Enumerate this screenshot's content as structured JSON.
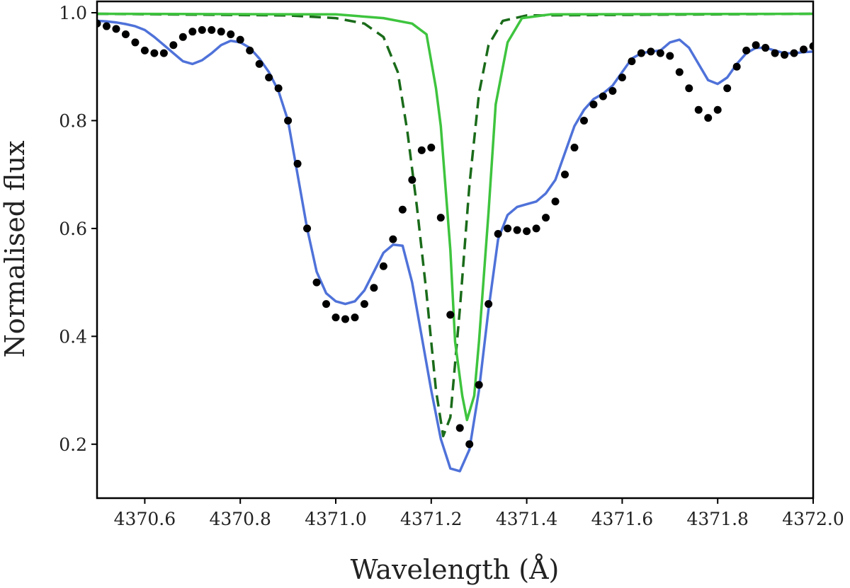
{
  "chart_data": {
    "type": "line",
    "x_label": "Wavelength (Å)",
    "y_label": "Normalised flux",
    "xlim": [
      4370.5,
      4372.0
    ],
    "ylim": [
      0.1,
      1.021
    ],
    "xticks": [
      4370.6,
      4370.8,
      {
        "value": 4371.0,
        "label": "4371.0"
      },
      4371.2,
      4371.4,
      4371.6,
      4371.8,
      {
        "value": 4372.0,
        "label": "4372.0"
      }
    ],
    "yticks": [
      0.2,
      0.4,
      0.6,
      0.8,
      {
        "value": 1.0,
        "label": "1.0"
      }
    ],
    "x": [
      4370.5,
      4370.52,
      4370.54,
      4370.56,
      4370.58,
      4370.6,
      4370.62,
      4370.64,
      4370.66,
      4370.68,
      4370.7,
      4370.72,
      4370.74,
      4370.76,
      4370.78,
      4370.8,
      4370.82,
      4370.84,
      4370.86,
      4370.88,
      4370.9,
      4370.92,
      4370.94,
      4370.96,
      4370.98,
      4371.0,
      4371.02,
      4371.04,
      4371.06,
      4371.08,
      4371.1,
      4371.12,
      4371.14,
      4371.16,
      4371.18,
      4371.2,
      4371.22,
      4371.24,
      4371.26,
      4371.28,
      4371.3,
      4371.32,
      4371.34,
      4371.36,
      4371.38,
      4371.4,
      4371.42,
      4371.44,
      4371.46,
      4371.48,
      4371.5,
      4371.52,
      4371.54,
      4371.56,
      4371.58,
      4371.6,
      4371.62,
      4371.64,
      4371.66,
      4371.68,
      4371.7,
      4371.72,
      4371.74,
      4371.76,
      4371.78,
      4371.8,
      4371.82,
      4371.84,
      4371.86,
      4371.88,
      4371.9,
      4371.92,
      4371.94,
      4371.96,
      4371.98,
      4372.0
    ],
    "series": [
      {
        "style": "solid",
        "color": "#4f72d9",
        "values": [
          0.985,
          0.984,
          0.982,
          0.979,
          0.975,
          0.968,
          0.955,
          0.94,
          0.925,
          0.91,
          0.905,
          0.912,
          0.925,
          0.94,
          0.948,
          0.945,
          0.935,
          0.915,
          0.89,
          0.855,
          0.8,
          0.7,
          0.6,
          0.52,
          0.48,
          0.465,
          0.46,
          0.465,
          0.485,
          0.52,
          0.555,
          0.57,
          0.568,
          0.5,
          0.4,
          0.3,
          0.21,
          0.155,
          0.15,
          0.19,
          0.3,
          0.45,
          0.58,
          0.625,
          0.64,
          0.645,
          0.65,
          0.665,
          0.69,
          0.74,
          0.79,
          0.82,
          0.84,
          0.85,
          0.865,
          0.89,
          0.915,
          0.925,
          0.928,
          0.93,
          0.945,
          0.95,
          0.935,
          0.905,
          0.875,
          0.868,
          0.88,
          0.905,
          0.925,
          0.935,
          0.935,
          0.93,
          0.925,
          0.925,
          0.927,
          0.928
        ]
      },
      {
        "style": "dashed",
        "color": "#1a6b1a",
        "x": [
          4370.5,
          4370.9,
          4371.0,
          4371.06,
          4371.1,
          4371.13,
          4371.15,
          4371.17,
          4371.19,
          4371.21,
          4371.225,
          4371.24,
          4371.26,
          4371.28,
          4371.3,
          4371.32,
          4371.35,
          4371.4,
          4372.0
        ],
        "values": [
          0.998,
          0.995,
          0.99,
          0.98,
          0.955,
          0.89,
          0.78,
          0.64,
          0.48,
          0.3,
          0.215,
          0.25,
          0.45,
          0.68,
          0.85,
          0.94,
          0.985,
          0.995,
          0.998
        ]
      },
      {
        "style": "solid",
        "color": "#3ec43e",
        "x": [
          4370.5,
          4371.0,
          4371.1,
          4371.16,
          4371.19,
          4371.21,
          4371.22,
          4371.24,
          4371.25,
          4371.265,
          4371.275,
          4371.29,
          4371.3,
          4371.32,
          4371.335,
          4371.36,
          4371.39,
          4371.45,
          4372.0
        ],
        "values": [
          0.998,
          0.997,
          0.99,
          0.98,
          0.96,
          0.86,
          0.79,
          0.56,
          0.39,
          0.29,
          0.245,
          0.29,
          0.39,
          0.63,
          0.83,
          0.945,
          0.99,
          0.997,
          0.998
        ]
      },
      {
        "style": "dots",
        "color": "#000000",
        "values": [
          0.98,
          0.975,
          0.97,
          0.96,
          0.945,
          0.93,
          0.925,
          0.925,
          0.94,
          0.955,
          0.965,
          0.968,
          0.968,
          0.965,
          0.96,
          0.95,
          0.93,
          0.905,
          0.88,
          0.86,
          0.8,
          0.72,
          0.6,
          0.5,
          0.46,
          0.435,
          0.432,
          0.435,
          0.46,
          0.49,
          0.53,
          0.58,
          0.635,
          0.69,
          0.745,
          0.75,
          0.62,
          0.44,
          0.23,
          0.2,
          0.31,
          0.46,
          0.59,
          0.6,
          0.597,
          0.595,
          0.6,
          0.62,
          0.65,
          0.7,
          0.75,
          0.8,
          0.83,
          0.845,
          0.855,
          0.88,
          0.91,
          0.925,
          0.928,
          0.925,
          0.92,
          0.89,
          0.86,
          0.82,
          0.805,
          0.82,
          0.86,
          0.9,
          0.93,
          0.94,
          0.935,
          0.925,
          0.922,
          0.925,
          0.932,
          0.938
        ]
      }
    ]
  }
}
